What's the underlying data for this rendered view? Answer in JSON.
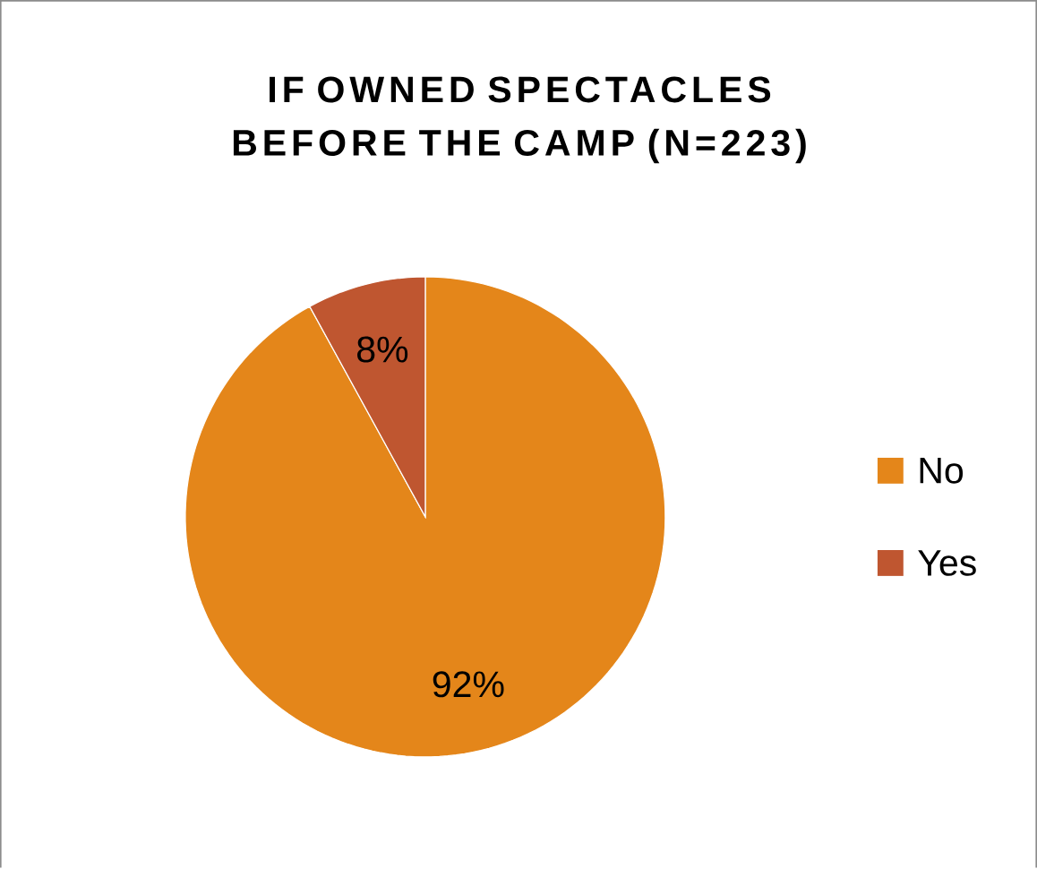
{
  "chart_data": {
    "type": "pie",
    "title": "IF OWNED SPECTACLES BEFORE THE CAMP (N=223)",
    "categories": [
      "No",
      "Yes"
    ],
    "values": [
      92,
      8
    ],
    "colors": [
      "#e4861a",
      "#bf5630"
    ],
    "value_labels": [
      "92%",
      "8%"
    ],
    "legend": "right"
  }
}
